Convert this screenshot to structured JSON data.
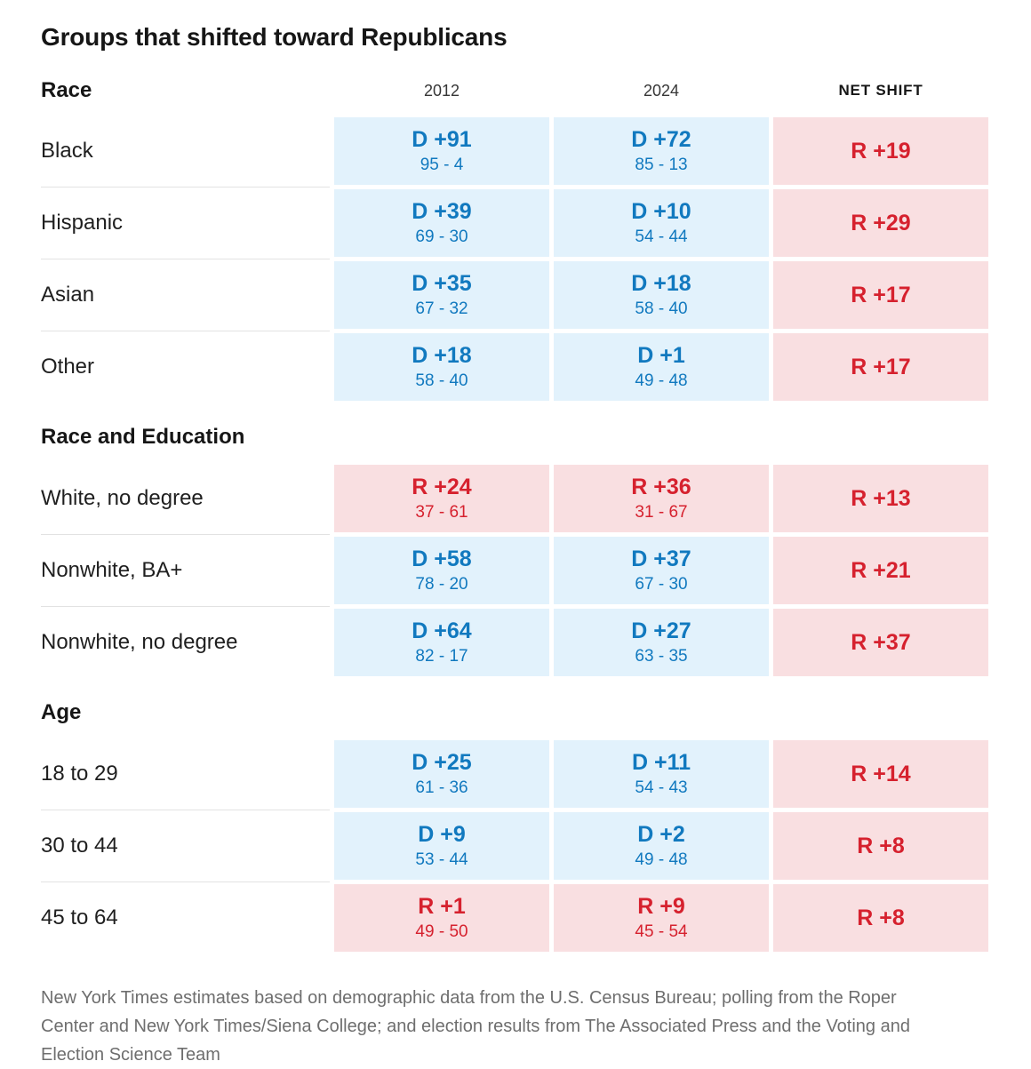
{
  "chart_data": {
    "type": "table",
    "title": "Groups that shifted toward Republicans",
    "columns": {
      "col_2012": "2012",
      "col_2024": "2024",
      "col_net": "NET SHIFT"
    },
    "sections": [
      {
        "header": "Race",
        "rows": [
          {
            "label": "Black",
            "y2012": {
              "party": "D",
              "value": "D +91",
              "detail": "95 - 4"
            },
            "y2024": {
              "party": "D",
              "value": "D +72",
              "detail": "85 - 13"
            },
            "net": {
              "party": "R",
              "value": "R +19"
            }
          },
          {
            "label": "Hispanic",
            "y2012": {
              "party": "D",
              "value": "D +39",
              "detail": "69 - 30"
            },
            "y2024": {
              "party": "D",
              "value": "D +10",
              "detail": "54 - 44"
            },
            "net": {
              "party": "R",
              "value": "R +29"
            }
          },
          {
            "label": "Asian",
            "y2012": {
              "party": "D",
              "value": "D +35",
              "detail": "67 - 32"
            },
            "y2024": {
              "party": "D",
              "value": "D +18",
              "detail": "58 - 40"
            },
            "net": {
              "party": "R",
              "value": "R +17"
            }
          },
          {
            "label": "Other",
            "y2012": {
              "party": "D",
              "value": "D +18",
              "detail": "58 - 40"
            },
            "y2024": {
              "party": "D",
              "value": "D +1",
              "detail": "49 - 48"
            },
            "net": {
              "party": "R",
              "value": "R +17"
            }
          }
        ]
      },
      {
        "header": "Race and Education",
        "rows": [
          {
            "label": "White, no degree",
            "y2012": {
              "party": "R",
              "value": "R +24",
              "detail": "37 - 61"
            },
            "y2024": {
              "party": "R",
              "value": "R +36",
              "detail": "31 - 67"
            },
            "net": {
              "party": "R",
              "value": "R +13"
            }
          },
          {
            "label": "Nonwhite, BA+",
            "y2012": {
              "party": "D",
              "value": "D +58",
              "detail": "78 - 20"
            },
            "y2024": {
              "party": "D",
              "value": "D +37",
              "detail": "67 - 30"
            },
            "net": {
              "party": "R",
              "value": "R +21"
            }
          },
          {
            "label": "Nonwhite, no degree",
            "y2012": {
              "party": "D",
              "value": "D +64",
              "detail": "82 - 17"
            },
            "y2024": {
              "party": "D",
              "value": "D +27",
              "detail": "63 - 35"
            },
            "net": {
              "party": "R",
              "value": "R +37"
            }
          }
        ]
      },
      {
        "header": "Age",
        "rows": [
          {
            "label": "18 to 29",
            "y2012": {
              "party": "D",
              "value": "D +25",
              "detail": "61 - 36"
            },
            "y2024": {
              "party": "D",
              "value": "D +11",
              "detail": "54 - 43"
            },
            "net": {
              "party": "R",
              "value": "R +14"
            }
          },
          {
            "label": "30 to 44",
            "y2012": {
              "party": "D",
              "value": "D +9",
              "detail": "53 - 44"
            },
            "y2024": {
              "party": "D",
              "value": "D +2",
              "detail": "49 - 48"
            },
            "net": {
              "party": "R",
              "value": "R +8"
            }
          },
          {
            "label": "45 to 64",
            "y2012": {
              "party": "R",
              "value": "R +1",
              "detail": "49 - 50"
            },
            "y2024": {
              "party": "R",
              "value": "R +9",
              "detail": "45 - 54"
            },
            "net": {
              "party": "R",
              "value": "R +8"
            }
          }
        ]
      }
    ]
  },
  "colors": {
    "dem_text": "#1179bf",
    "dem_bg": "#e2f2fc",
    "rep_text": "#d6212e",
    "rep_bg": "#f9dfe1"
  },
  "source_note": {
    "lines": [
      "New York Times estimates based on demographic data from the U.S. Census Bureau; polling from the Roper",
      "Center and New York Times/Siena College; and election results from The Associated Press and the Voting and",
      "Election Science Team"
    ]
  }
}
